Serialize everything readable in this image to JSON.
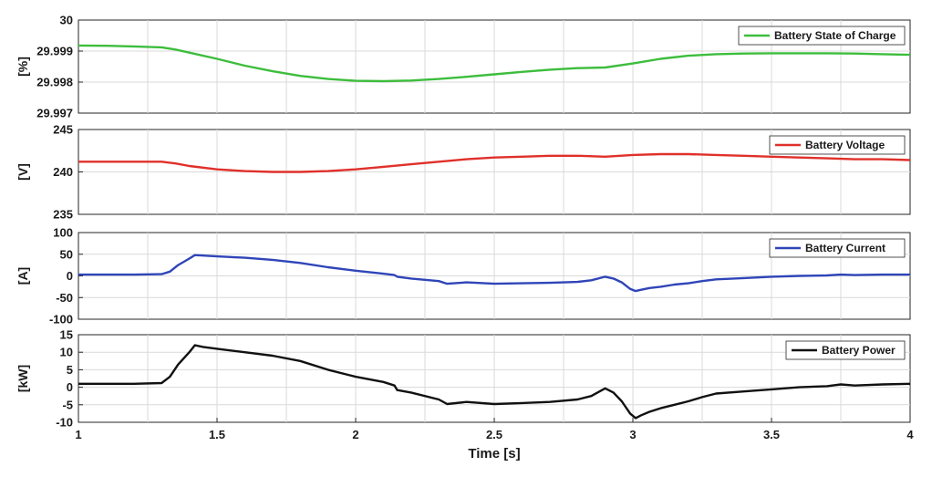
{
  "chart_data": [
    {
      "type": "line",
      "ylabel": "[%]",
      "ylim": [
        29.997,
        30
      ],
      "yticks": [
        29.997,
        29.998,
        29.999,
        30
      ],
      "ytick_labels": [
        "29.997",
        "29.998",
        "29.999",
        "30"
      ],
      "xlim": [
        1,
        4
      ],
      "grid": true,
      "legend_position": "top-right",
      "series": [
        {
          "name": "Battery State of Charge",
          "color": "#3dbd3d",
          "x": [
            1.0,
            1.1,
            1.2,
            1.3,
            1.35,
            1.4,
            1.5,
            1.6,
            1.7,
            1.8,
            1.9,
            2.0,
            2.1,
            2.2,
            2.3,
            2.4,
            2.5,
            2.6,
            2.7,
            2.8,
            2.9,
            3.0,
            3.1,
            3.2,
            3.3,
            3.4,
            3.5,
            3.6,
            3.7,
            3.8,
            3.9,
            4.0
          ],
          "y": [
            29.99918,
            29.99917,
            29.99915,
            29.99912,
            29.99905,
            29.99895,
            29.99875,
            29.99853,
            29.99835,
            29.9982,
            29.9981,
            29.99804,
            29.99803,
            29.99805,
            29.9981,
            29.99817,
            29.99825,
            29.99833,
            29.9984,
            29.99845,
            29.99847,
            29.9986,
            29.99875,
            29.99885,
            29.9989,
            29.99892,
            29.99893,
            29.99893,
            29.99893,
            29.99892,
            29.9989,
            29.99888
          ]
        }
      ]
    },
    {
      "type": "line",
      "ylabel": "[V]",
      "ylim": [
        235,
        245
      ],
      "yticks": [
        235,
        240,
        245
      ],
      "ytick_labels": [
        "235",
        "240",
        "245"
      ],
      "xlim": [
        1,
        4
      ],
      "grid": true,
      "legend_position": "top-right",
      "series": [
        {
          "name": "Battery Voltage",
          "color": "#e0302a",
          "x": [
            1.0,
            1.2,
            1.3,
            1.35,
            1.4,
            1.5,
            1.6,
            1.7,
            1.8,
            1.9,
            2.0,
            2.1,
            2.2,
            2.3,
            2.4,
            2.5,
            2.6,
            2.7,
            2.8,
            2.9,
            3.0,
            3.1,
            3.2,
            3.3,
            3.4,
            3.5,
            3.6,
            3.7,
            3.8,
            3.9,
            4.0
          ],
          "y": [
            241.2,
            241.2,
            241.2,
            241.0,
            240.7,
            240.3,
            240.1,
            240.0,
            240.0,
            240.1,
            240.3,
            240.6,
            240.9,
            241.2,
            241.5,
            241.7,
            241.8,
            241.9,
            241.9,
            241.8,
            242.0,
            242.1,
            242.1,
            242.0,
            241.9,
            241.8,
            241.7,
            241.6,
            241.5,
            241.5,
            241.4
          ]
        }
      ]
    },
    {
      "type": "line",
      "ylabel": "[A]",
      "ylim": [
        -100,
        100
      ],
      "yticks": [
        -100,
        -50,
        0,
        50,
        100
      ],
      "ytick_labels": [
        "-100",
        "-50",
        "0",
        "50",
        "100"
      ],
      "xlim": [
        1,
        4
      ],
      "grid": true,
      "legend_position": "top-right",
      "series": [
        {
          "name": "Battery Current",
          "color": "#2f45b8",
          "x": [
            1.0,
            1.2,
            1.3,
            1.33,
            1.36,
            1.4,
            1.42,
            1.45,
            1.5,
            1.6,
            1.7,
            1.8,
            1.9,
            2.0,
            2.1,
            2.14,
            2.15,
            2.2,
            2.3,
            2.33,
            2.4,
            2.5,
            2.6,
            2.7,
            2.8,
            2.85,
            2.9,
            2.93,
            2.96,
            2.99,
            3.01,
            3.03,
            3.06,
            3.1,
            3.15,
            3.2,
            3.25,
            3.3,
            3.4,
            3.5,
            3.6,
            3.7,
            3.75,
            3.8,
            3.9,
            4.0
          ],
          "y": [
            3,
            3,
            4,
            10,
            25,
            40,
            48,
            47,
            45,
            42,
            37,
            30,
            20,
            12,
            5,
            2,
            -2,
            -6,
            -12,
            -18,
            -15,
            -18,
            -17,
            -16,
            -14,
            -10,
            -2,
            -6,
            -15,
            -30,
            -35,
            -32,
            -28,
            -25,
            -20,
            -17,
            -12,
            -8,
            -5,
            -2,
            0,
            1,
            3,
            2,
            3,
            3
          ]
        }
      ]
    },
    {
      "type": "line",
      "ylabel": "[kW]",
      "xlabel": "Time [s]",
      "ylim": [
        -10,
        15
      ],
      "yticks": [
        -10,
        -5,
        0,
        5,
        10,
        15
      ],
      "ytick_labels": [
        "-10",
        "-5",
        "0",
        "5",
        "10",
        "15"
      ],
      "xlim": [
        1,
        4
      ],
      "xticks": [
        1,
        1.5,
        2,
        2.5,
        3,
        3.5,
        4
      ],
      "xtick_labels": [
        "1",
        "1.5",
        "2",
        "2.5",
        "3",
        "3.5",
        "4"
      ],
      "grid": true,
      "legend_position": "top-right",
      "series": [
        {
          "name": "Battery Power",
          "color": "#111111",
          "x": [
            1.0,
            1.2,
            1.3,
            1.33,
            1.36,
            1.4,
            1.42,
            1.45,
            1.5,
            1.6,
            1.7,
            1.8,
            1.9,
            2.0,
            2.1,
            2.14,
            2.15,
            2.2,
            2.3,
            2.33,
            2.4,
            2.5,
            2.6,
            2.7,
            2.8,
            2.85,
            2.9,
            2.93,
            2.96,
            2.99,
            3.01,
            3.03,
            3.06,
            3.1,
            3.15,
            3.2,
            3.25,
            3.3,
            3.4,
            3.5,
            3.6,
            3.7,
            3.75,
            3.8,
            3.9,
            4.0
          ],
          "y": [
            1,
            1,
            1.2,
            3,
            6.5,
            10,
            12,
            11.5,
            11,
            10,
            9,
            7.5,
            5,
            3,
            1.5,
            0.5,
            -0.8,
            -1.5,
            -3.5,
            -4.8,
            -4.2,
            -4.8,
            -4.5,
            -4.2,
            -3.5,
            -2.5,
            -0.3,
            -1.5,
            -4,
            -7.5,
            -8.8,
            -8,
            -7,
            -6,
            -5,
            -4,
            -2.8,
            -1.8,
            -1.2,
            -0.6,
            0,
            0.3,
            0.8,
            0.5,
            0.8,
            1
          ]
        }
      ]
    }
  ]
}
